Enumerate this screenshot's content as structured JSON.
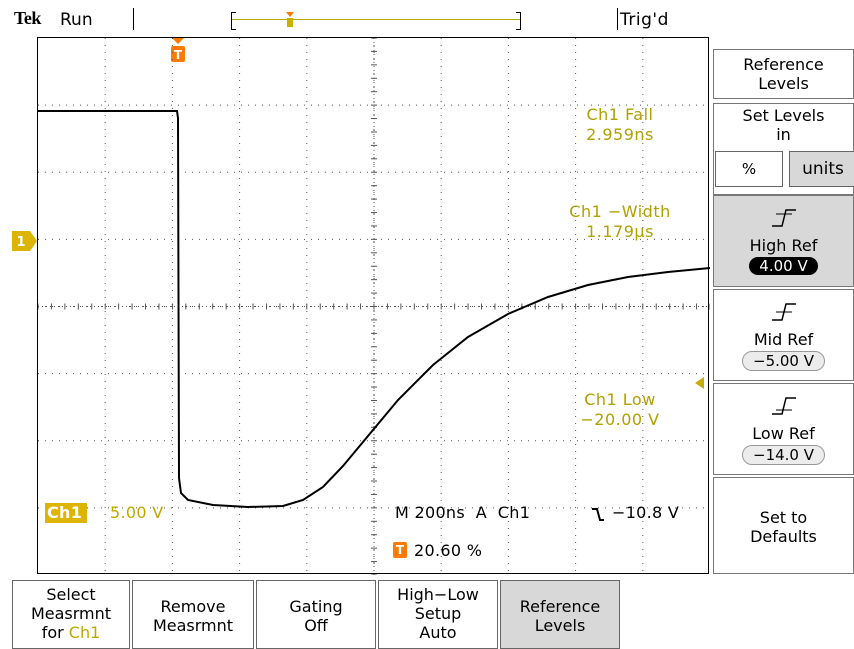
{
  "header": {
    "brand": "Tek",
    "state": "Run",
    "trigger_status": "Trig'd"
  },
  "channel": {
    "marker": "1",
    "scale_label": "Ch1",
    "scale_value": "5.00 V"
  },
  "trigger_marker": "T",
  "timebase": {
    "text": "M 200ns  A  Ch1",
    "slope_icon": "falling-edge-icon",
    "level": "−10.8 V",
    "position": "20.60 %"
  },
  "measurements": [
    {
      "name": "Ch1 Fall",
      "value": "2.959ns"
    },
    {
      "name": "Ch1 −Width",
      "value": "1.179µs"
    },
    {
      "name": "Ch1 Low",
      "value": "−20.00 V"
    }
  ],
  "side_menu": {
    "title": "Reference Levels",
    "set_levels_label": "Set Levels in",
    "unit_percent": "%",
    "unit_units": "units",
    "high_ref_label": "High Ref",
    "high_ref_value": "4.00 V",
    "mid_ref_label": "Mid Ref",
    "mid_ref_value": "−5.00 V",
    "low_ref_label": "Low Ref",
    "low_ref_value": "−14.0 V",
    "defaults_label": "Set to Defaults"
  },
  "bottom_menu": {
    "b1_line1": "Select",
    "b1_line2": "Measrmnt",
    "b1_line3a": "for ",
    "b1_line3b": "Ch1",
    "b2_line1": "Remove",
    "b2_line2": "Measrmnt",
    "b3_line1": "Gating",
    "b3_line2": "Off",
    "b4_line1": "High−Low",
    "b4_line2": "Setup",
    "b4_line3": "Auto",
    "b5_line1": "Reference",
    "b5_line2": "Levels"
  },
  "colors": {
    "measurement_text": "#b0a000",
    "channel_badge": "#ddb400",
    "trigger_marker": "#ff7a00",
    "selected_button": "#d8d8d8"
  }
}
